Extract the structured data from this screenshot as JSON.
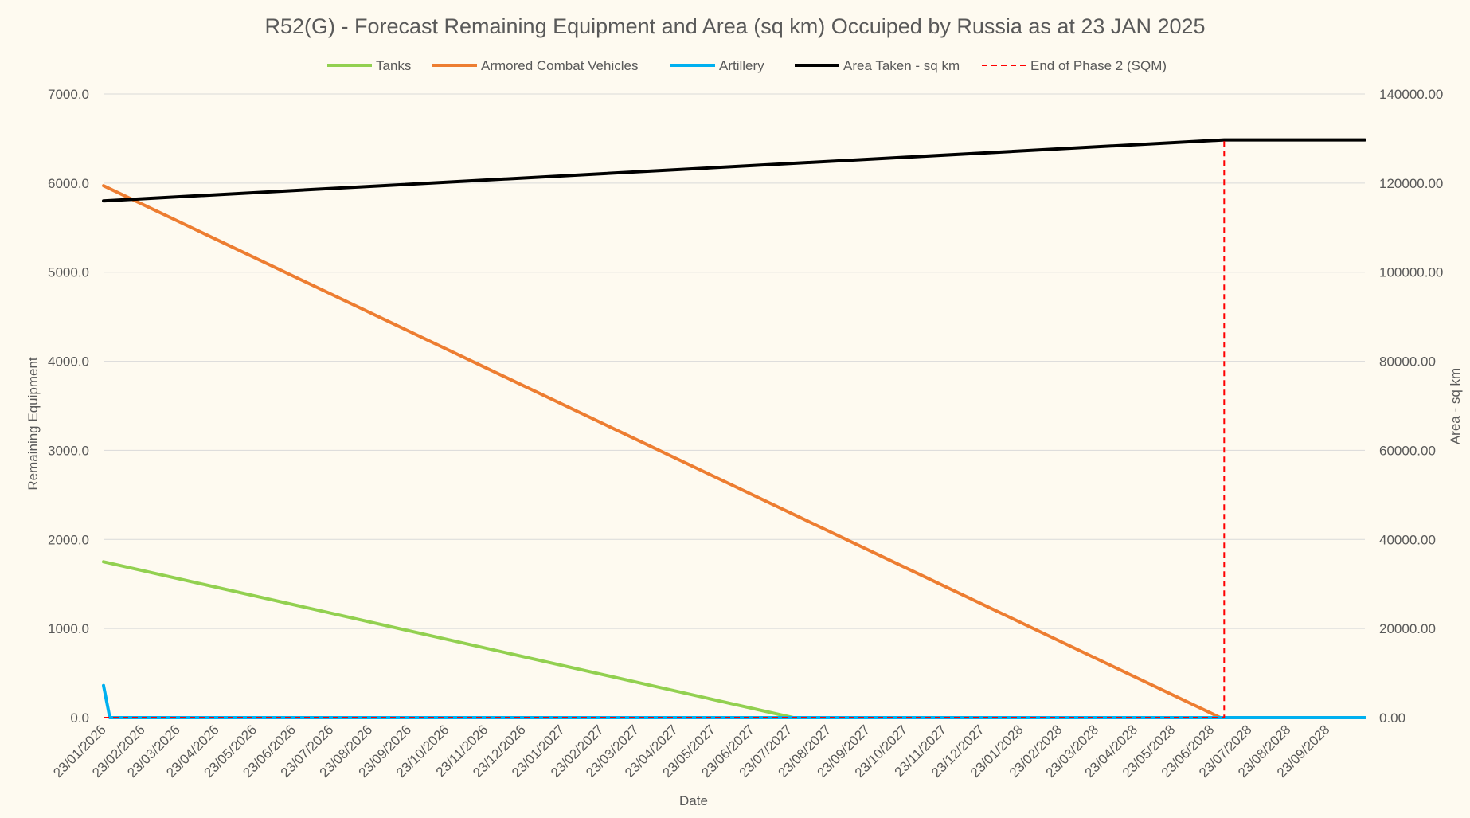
{
  "chart_data": {
    "type": "line",
    "title": "R52(G) - Forecast Remaining Equipment and Area (sq km) Occuiped by Russia as at 23 JAN 2025",
    "xlabel": "Date",
    "ylabel": "Remaining Equipment",
    "y2label": "Area - sq km",
    "ylim": [
      0,
      7000
    ],
    "y2lim": [
      0,
      140000
    ],
    "yticks": [
      "0.0",
      "1000.0",
      "2000.0",
      "3000.0",
      "4000.0",
      "5000.0",
      "6000.0",
      "7000.0"
    ],
    "y2ticks": [
      "0.00",
      "20000.00",
      "40000.00",
      "60000.00",
      "80000.00",
      "100000.00",
      "120000.00",
      "140000.00"
    ],
    "x_ticks": [
      "23/01/2026",
      "23/02/2026",
      "23/03/2026",
      "23/04/2026",
      "23/05/2026",
      "23/06/2026",
      "23/07/2026",
      "23/08/2026",
      "23/09/2026",
      "23/10/2026",
      "23/11/2026",
      "23/12/2026",
      "23/01/2027",
      "23/02/2027",
      "23/03/2027",
      "23/04/2027",
      "23/05/2027",
      "23/06/2027",
      "23/07/2027",
      "23/08/2027",
      "23/09/2027",
      "23/10/2027",
      "23/11/2027",
      "23/12/2027",
      "23/01/2028",
      "23/02/2028",
      "23/03/2028",
      "23/04/2028",
      "23/05/2028",
      "23/06/2028",
      "23/07/2028",
      "23/08/2028",
      "23/09/2028"
    ],
    "x_range": [
      "23/01/2026",
      "23/10/2028"
    ],
    "grid": "horizontal",
    "legend_position": "top",
    "series": [
      {
        "name": "Tanks",
        "axis": "left",
        "color": "#92d050",
        "dash": "solid",
        "points": [
          [
            "23/01/2026",
            1750
          ],
          [
            "26/07/2027",
            0
          ],
          [
            "23/10/2028",
            0
          ]
        ]
      },
      {
        "name": "Armored Combat Vehicles",
        "axis": "left",
        "color": "#ed7d31",
        "dash": "solid",
        "points": [
          [
            "23/01/2026",
            5970
          ],
          [
            "30/06/2028",
            0
          ],
          [
            "23/10/2028",
            0
          ]
        ]
      },
      {
        "name": "Artillery",
        "axis": "left",
        "color": "#00b0f0",
        "dash": "solid",
        "points": [
          [
            "23/01/2026",
            360
          ],
          [
            "28/01/2026",
            0
          ],
          [
            "23/10/2028",
            0
          ]
        ]
      },
      {
        "name": "Area Taken - sq km",
        "axis": "right",
        "color": "#000000",
        "dash": "solid",
        "points": [
          [
            "23/01/2026",
            116000
          ],
          [
            "03/07/2028",
            129700
          ],
          [
            "23/10/2028",
            129700
          ]
        ]
      },
      {
        "name": "End of Phase 2 (SQM)",
        "axis": "right",
        "color": "#ff0000",
        "dash": "dashed",
        "points": [
          [
            "23/01/2026",
            0
          ],
          [
            "03/07/2028",
            0
          ],
          [
            "03/07/2028",
            129700
          ]
        ]
      }
    ]
  }
}
